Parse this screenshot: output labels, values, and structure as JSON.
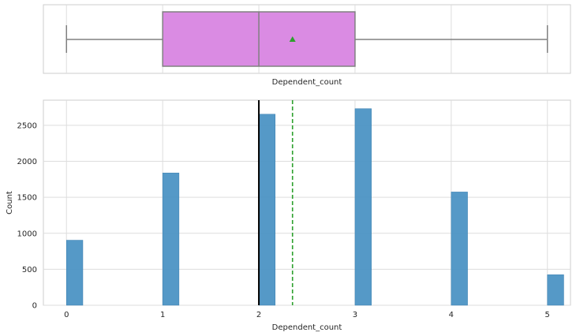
{
  "chart_data": [
    {
      "type": "box",
      "xlabel": "Dependent_count",
      "xlim": [
        -0.24,
        5.24
      ],
      "grid": true,
      "stats": {
        "min": 0,
        "q1": 1,
        "median": 2,
        "mean": 2.35,
        "q3": 3,
        "max": 5
      },
      "colors": {
        "box": "#da8be3",
        "edge": "#808080",
        "mean_marker": "#2ca02c"
      }
    },
    {
      "type": "bar",
      "xlabel": "Dependent_count",
      "ylabel": "Count",
      "xlim": [
        -0.24,
        5.24
      ],
      "ylim": [
        0,
        2850
      ],
      "xticks": [
        "0",
        "1",
        "2",
        "3",
        "4",
        "5"
      ],
      "yticks": [
        "0",
        "500",
        "1000",
        "1500",
        "2000",
        "2500"
      ],
      "grid": true,
      "bins": [
        {
          "x": 0,
          "value": 904
        },
        {
          "x": 1,
          "value": 1838
        },
        {
          "x": 2,
          "value": 2655
        },
        {
          "x": 3,
          "value": 2732
        },
        {
          "x": 4,
          "value": 1574
        },
        {
          "x": 5,
          "value": 424
        }
      ],
      "median_line": 2,
      "mean_line": 2.35,
      "colors": {
        "bar": "#4c94c4",
        "median_line": "#000000",
        "mean_line": "#2ca02c",
        "grid": "#dddddd"
      }
    }
  ]
}
